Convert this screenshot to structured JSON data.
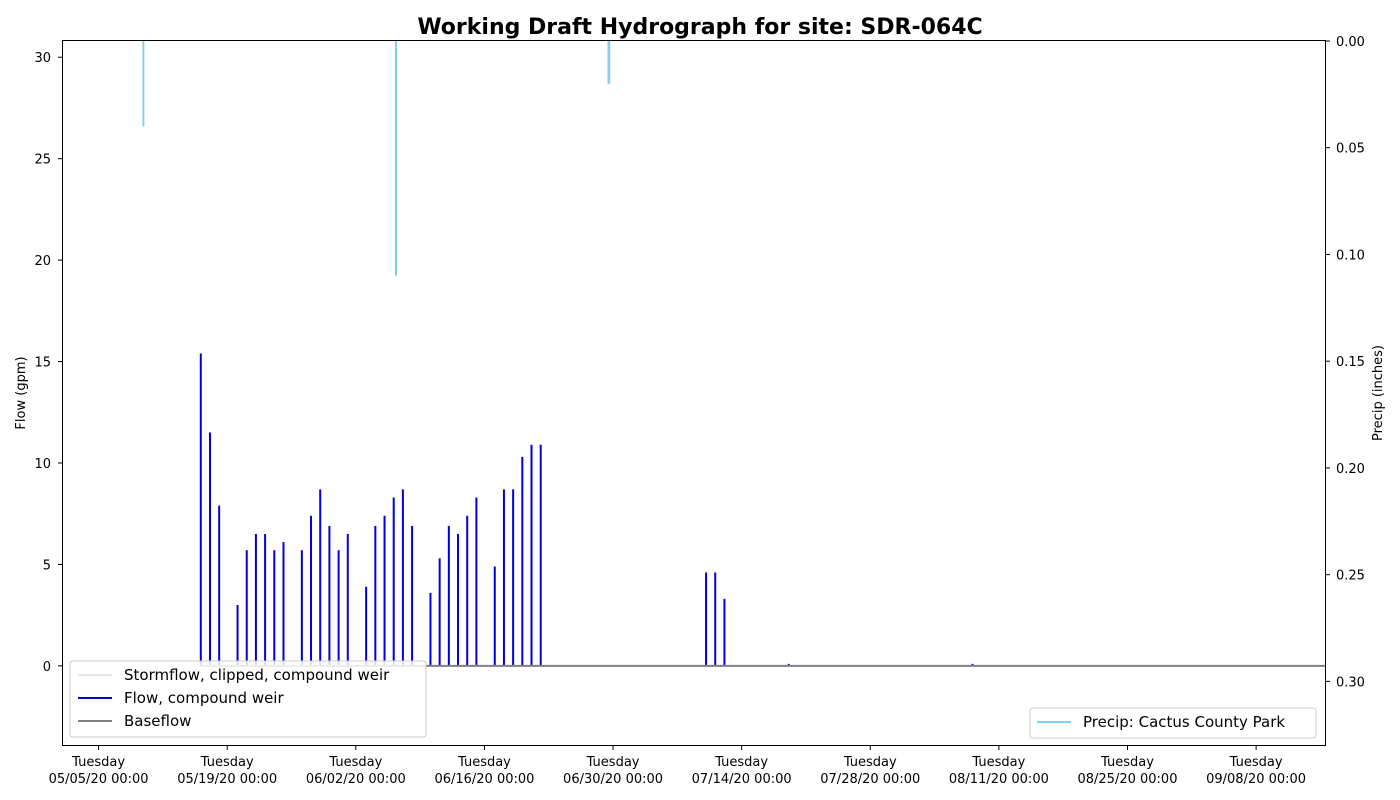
{
  "chart_data": {
    "type": "line",
    "title": "Working Draft Hydrograph for site: SDR-064C",
    "ylabel": "Flow (gpm)",
    "y2label": "Precip (inches)",
    "ylim": [
      -3.9,
      30.8
    ],
    "y2lim": [
      0.3298,
      0.0
    ],
    "y2_inverted": true,
    "xlim": [
      "2020-05-01 03:00",
      "2020-09-15 12:00"
    ],
    "yticks": [
      0,
      5,
      10,
      15,
      20,
      25,
      30
    ],
    "y2ticks": [
      0.0,
      0.05,
      0.1,
      0.15,
      0.2,
      0.25,
      0.3
    ],
    "y2tick_labels": [
      "0.00",
      "0.05",
      "0.10",
      "0.15",
      "0.20",
      "0.25",
      "0.30"
    ],
    "xticks": [
      {
        "date": "2020-05-05 00:00",
        "line1": "Tuesday",
        "line2": "05/05/20 00:00"
      },
      {
        "date": "2020-05-19 00:00",
        "line1": "Tuesday",
        "line2": "05/19/20 00:00"
      },
      {
        "date": "2020-06-02 00:00",
        "line1": "Tuesday",
        "line2": "06/02/20 00:00"
      },
      {
        "date": "2020-06-16 00:00",
        "line1": "Tuesday",
        "line2": "06/16/20 00:00"
      },
      {
        "date": "2020-06-30 00:00",
        "line1": "Tuesday",
        "line2": "06/30/20 00:00"
      },
      {
        "date": "2020-07-14 00:00",
        "line1": "Tuesday",
        "line2": "07/14/20 00:00"
      },
      {
        "date": "2020-07-28 00:00",
        "line1": "Tuesday",
        "line2": "07/28/20 00:00"
      },
      {
        "date": "2020-08-11 00:00",
        "line1": "Tuesday",
        "line2": "08/11/20 00:00"
      },
      {
        "date": "2020-08-25 00:00",
        "line1": "Tuesday",
        "line2": "08/25/20 00:00"
      },
      {
        "date": "2020-09-08 00:00",
        "line1": "Tuesday",
        "line2": "09/08/20 00:00"
      }
    ],
    "grid": false,
    "legend_left_placement": "lower-left",
    "legend_right_placement": "lower-right",
    "series": [
      {
        "name": "Stormflow, clipped, compound weir",
        "axis": "left",
        "color": "#e6e6e6",
        "kind": "line",
        "points": []
      },
      {
        "name": "Flow, compound weir",
        "axis": "left",
        "color": "#0000dd",
        "kind": "spikes",
        "baseline": 0,
        "points": [
          {
            "x": "2020-05-16 03:00",
            "y": 15.4
          },
          {
            "x": "2020-05-17 03:00",
            "y": 11.5
          },
          {
            "x": "2020-05-18 03:00",
            "y": 7.9
          },
          {
            "x": "2020-05-20 03:00",
            "y": 3.0
          },
          {
            "x": "2020-05-21 03:00",
            "y": 5.7
          },
          {
            "x": "2020-05-22 03:00",
            "y": 6.5
          },
          {
            "x": "2020-05-23 03:00",
            "y": 6.5
          },
          {
            "x": "2020-05-24 03:00",
            "y": 5.7
          },
          {
            "x": "2020-05-25 03:00",
            "y": 6.1
          },
          {
            "x": "2020-05-27 03:00",
            "y": 5.7
          },
          {
            "x": "2020-05-28 03:00",
            "y": 7.4
          },
          {
            "x": "2020-05-29 03:00",
            "y": 8.7
          },
          {
            "x": "2020-05-30 03:00",
            "y": 6.9
          },
          {
            "x": "2020-05-31 03:00",
            "y": 5.7
          },
          {
            "x": "2020-06-01 03:00",
            "y": 6.5
          },
          {
            "x": "2020-06-03 03:00",
            "y": 3.9
          },
          {
            "x": "2020-06-04 03:00",
            "y": 6.9
          },
          {
            "x": "2020-06-05 03:00",
            "y": 7.4
          },
          {
            "x": "2020-06-06 03:00",
            "y": 8.3
          },
          {
            "x": "2020-06-07 03:00",
            "y": 8.7
          },
          {
            "x": "2020-06-08 03:00",
            "y": 6.9
          },
          {
            "x": "2020-06-10 03:00",
            "y": 3.6
          },
          {
            "x": "2020-06-11 03:00",
            "y": 5.3
          },
          {
            "x": "2020-06-12 03:00",
            "y": 6.9
          },
          {
            "x": "2020-06-13 03:00",
            "y": 6.5
          },
          {
            "x": "2020-06-14 03:00",
            "y": 7.4
          },
          {
            "x": "2020-06-15 03:00",
            "y": 8.3
          },
          {
            "x": "2020-06-17 03:00",
            "y": 4.9
          },
          {
            "x": "2020-06-18 03:00",
            "y": 8.7
          },
          {
            "x": "2020-06-19 03:00",
            "y": 8.7
          },
          {
            "x": "2020-06-20 03:00",
            "y": 10.3
          },
          {
            "x": "2020-06-21 03:00",
            "y": 10.9
          },
          {
            "x": "2020-06-22 03:00",
            "y": 10.9
          },
          {
            "x": "2020-07-10 03:00",
            "y": 4.6
          },
          {
            "x": "2020-07-11 03:00",
            "y": 4.6
          },
          {
            "x": "2020-07-12 03:00",
            "y": 3.3
          },
          {
            "x": "2020-07-19 03:00",
            "y": 0.1
          },
          {
            "x": "2020-08-08 03:00",
            "y": 0.1
          }
        ]
      },
      {
        "name": "Baseflow",
        "axis": "left",
        "color": "#808080",
        "kind": "line",
        "points": [
          {
            "x": "2020-05-16 00:00",
            "y": 0
          },
          {
            "x": "2020-09-15 12:00",
            "y": 0
          }
        ]
      },
      {
        "name": "Precip: Cactus County Park",
        "axis": "right",
        "color": "#87ceeb",
        "kind": "bars",
        "points": [
          {
            "x": "2020-05-09 21:00",
            "y": 0.04
          },
          {
            "x": "2020-06-06 09:00",
            "y": 0.11
          },
          {
            "x": "2020-06-29 12:00",
            "y": 0.02
          },
          {
            "x": "2020-06-29 14:00",
            "y": 0.02
          }
        ]
      }
    ]
  }
}
